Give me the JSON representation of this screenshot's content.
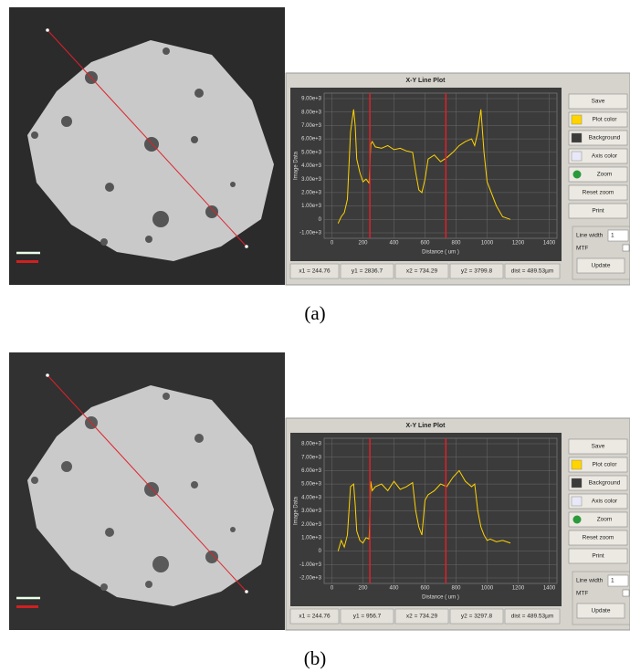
{
  "panels": [
    {
      "caption": "(a)",
      "plot": {
        "type": "line",
        "title": "X-Y Line Plot",
        "x_label": "Distance ( um )",
        "y_label": "Image Data",
        "xlim": [
          -50,
          1450
        ],
        "ylim": [
          -1000,
          9000
        ],
        "xticks": [
          0,
          200,
          400,
          600,
          800,
          1000,
          1200,
          1400
        ],
        "yticks": [
          {
            "value": 9000,
            "label": "9.00e+3"
          },
          {
            "value": 8000,
            "label": "8.00e+3"
          },
          {
            "value": 7000,
            "label": "7.00e+3"
          },
          {
            "value": 6000,
            "label": "6.00e+3"
          },
          {
            "value": 5000,
            "label": "5.00e+3"
          },
          {
            "value": 4000,
            "label": "4.00e+3"
          },
          {
            "value": 3000,
            "label": "3.00e+3"
          },
          {
            "value": 2000,
            "label": "2.00e+3"
          },
          {
            "value": 1000,
            "label": "1.00e+3"
          },
          0,
          {
            "value": -1000,
            "label": "-1.00e+3"
          }
        ],
        "grid": true,
        "series": [
          {
            "color": "#ffd400",
            "x": [
              40,
              60,
              80,
              100,
              120,
              140,
              150,
              160,
              180,
              200,
              220,
              240,
              250,
              260,
              280,
              320,
              360,
              400,
              440,
              480,
              520,
              540,
              560,
              580,
              600,
              620,
              660,
              700,
              740,
              780,
              820,
              860,
              900,
              920,
              940,
              960,
              980,
              1000,
              1020,
              1060,
              1100,
              1150
            ],
            "values": [
              -300,
              200,
              500,
              1500,
              6500,
              8200,
              7000,
              4500,
              3500,
              2800,
              3000,
              2700,
              5600,
              5800,
              5400,
              5300,
              5500,
              5200,
              5300,
              5100,
              5000,
              3500,
              2200,
              2000,
              3000,
              4500,
              4800,
              4300,
              4600,
              5000,
              5500,
              5800,
              6000,
              5500,
              6500,
              8200,
              5000,
              2800,
              2200,
              1000,
              200,
              0
            ]
          }
        ],
        "markers": {
          "color": "#e0202a",
          "x": [
            244.76,
            734.29
          ]
        },
        "status": [
          "x1 = 244.76",
          "y1 = 2836.7",
          "x2 = 734.29",
          "y2 = 3799.8",
          "dist = 489.53µm"
        ]
      }
    },
    {
      "caption": "(b)",
      "plot": {
        "type": "line",
        "title": "X-Y Line Plot",
        "x_label": "Distance ( um )",
        "y_label": "Image Data",
        "xlim": [
          -50,
          1450
        ],
        "ylim": [
          -2000,
          8000
        ],
        "xticks": [
          0,
          200,
          400,
          600,
          800,
          1000,
          1200,
          1400
        ],
        "yticks": [
          {
            "value": 8000,
            "label": "8.00e+3"
          },
          {
            "value": 7000,
            "label": "7.00e+3"
          },
          {
            "value": 6000,
            "label": "6.00e+3"
          },
          {
            "value": 5000,
            "label": "5.00e+3"
          },
          {
            "value": 4000,
            "label": "4.00e+3"
          },
          {
            "value": 3000,
            "label": "3.00e+3"
          },
          {
            "value": 2000,
            "label": "2.00e+3"
          },
          {
            "value": 1000,
            "label": "1.00e+3"
          },
          0,
          {
            "value": -1000,
            "label": "-1.00e+3"
          },
          {
            "value": -2000,
            "label": "-2.00e+3"
          }
        ],
        "grid": true,
        "series": [
          {
            "color": "#ffd400",
            "x": [
              40,
              60,
              80,
              100,
              120,
              140,
              150,
              160,
              180,
              200,
              220,
              240,
              250,
              260,
              280,
              320,
              360,
              400,
              440,
              480,
              520,
              540,
              560,
              580,
              600,
              620,
              660,
              700,
              740,
              780,
              820,
              860,
              900,
              920,
              940,
              960,
              980,
              1000,
              1020,
              1060,
              1100,
              1150
            ],
            "values": [
              0,
              800,
              300,
              1200,
              4800,
              5000,
              3500,
              1500,
              800,
              600,
              1000,
              900,
              5200,
              4500,
              4800,
              5000,
              4500,
              5200,
              4600,
              4800,
              5100,
              3000,
              1800,
              1200,
              3800,
              4200,
              4500,
              5000,
              4800,
              5500,
              6000,
              5200,
              4800,
              5000,
              3000,
              1800,
              1200,
              800,
              900,
              700,
              800,
              600
            ]
          }
        ],
        "markers": {
          "color": "#e0202a",
          "x": [
            244.76,
            734.29
          ]
        },
        "status": [
          "x1 = 244.76",
          "y1 = 956.7",
          "x2 = 734.29",
          "y2 = 3297.8",
          "dist = 489.53µm"
        ]
      }
    }
  ],
  "controls": {
    "buttons": [
      "Save",
      "Plot color",
      "Background",
      "Axis color",
      "Zoom",
      "Reset zoom",
      "Print"
    ],
    "line_width_label": "Line width",
    "line_width_value": "1",
    "mtf_label": "MTF",
    "update": "Update"
  }
}
